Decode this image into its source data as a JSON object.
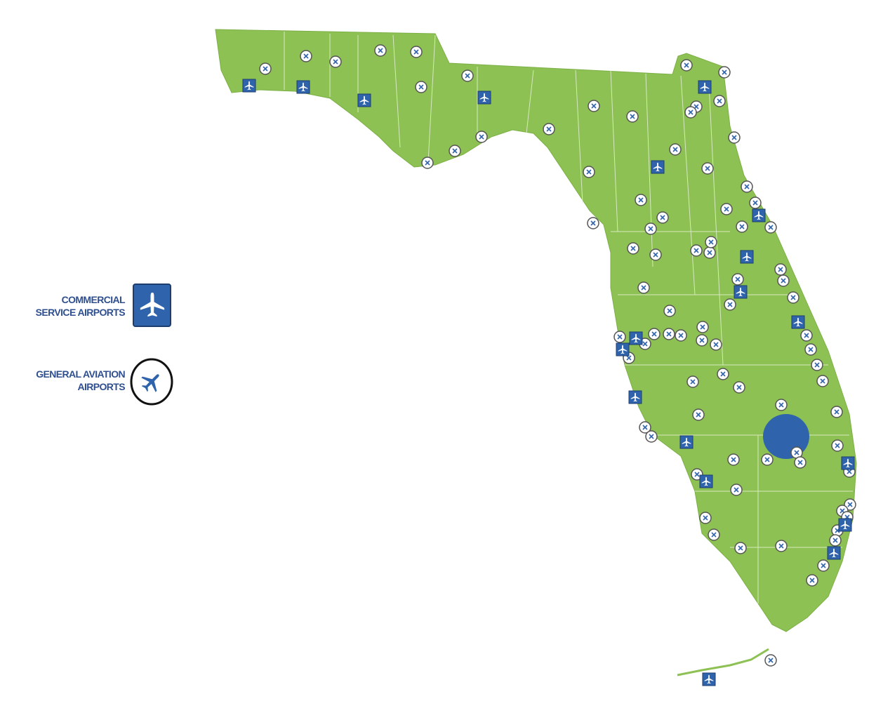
{
  "legend": [
    {
      "label": [
        "COMMERCIAL",
        "SERVICE AIRPORTS"
      ]
    },
    {
      "label": [
        "GENERAL AVIATION",
        "AIRPORTS"
      ]
    }
  ]
}
